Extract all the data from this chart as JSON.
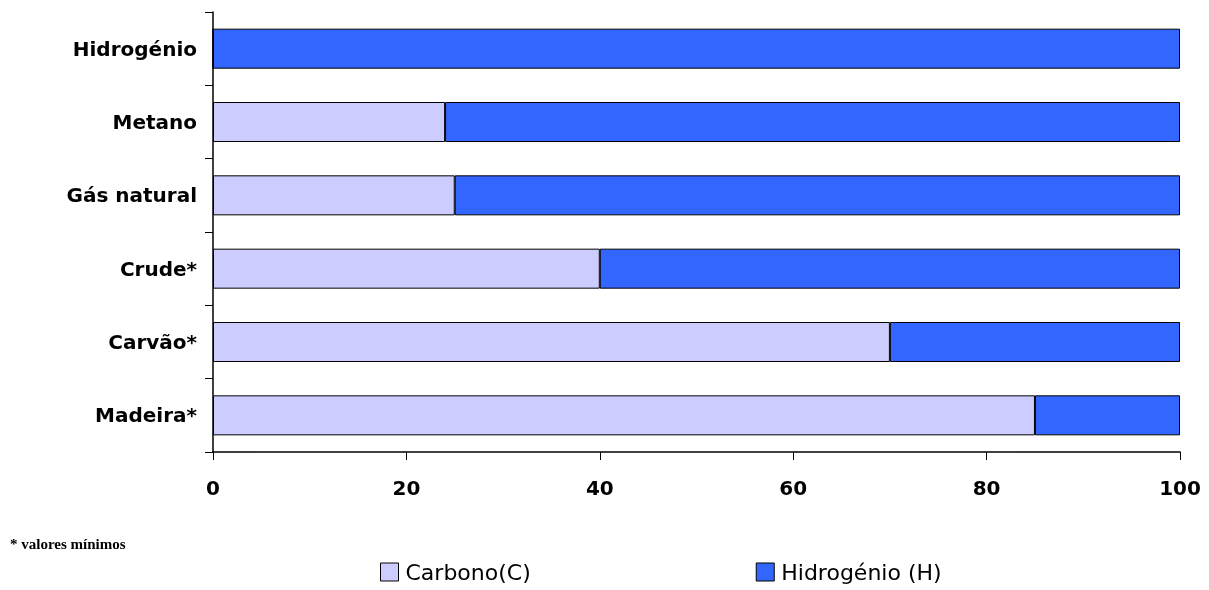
{
  "chart_data": {
    "type": "bar",
    "orientation": "horizontal",
    "stacked": true,
    "categories": [
      "Hidrogénio",
      "Metano",
      "Gás natural",
      "Crude*",
      "Carvão*",
      "Madeira*"
    ],
    "series": [
      {
        "name": "Carbono(C)",
        "color": "#ccccff",
        "values": [
          0,
          24,
          25,
          40,
          70,
          85
        ]
      },
      {
        "name": "Hidrogénio (H)",
        "color": "#3366ff",
        "values": [
          100,
          76,
          75,
          60,
          30,
          15
        ]
      }
    ],
    "xlim": [
      0,
      100
    ],
    "xticks": [
      0,
      20,
      40,
      60,
      80,
      100
    ],
    "grid": false,
    "legend": "bottom",
    "annotations": [
      "* valores mínimos"
    ]
  }
}
